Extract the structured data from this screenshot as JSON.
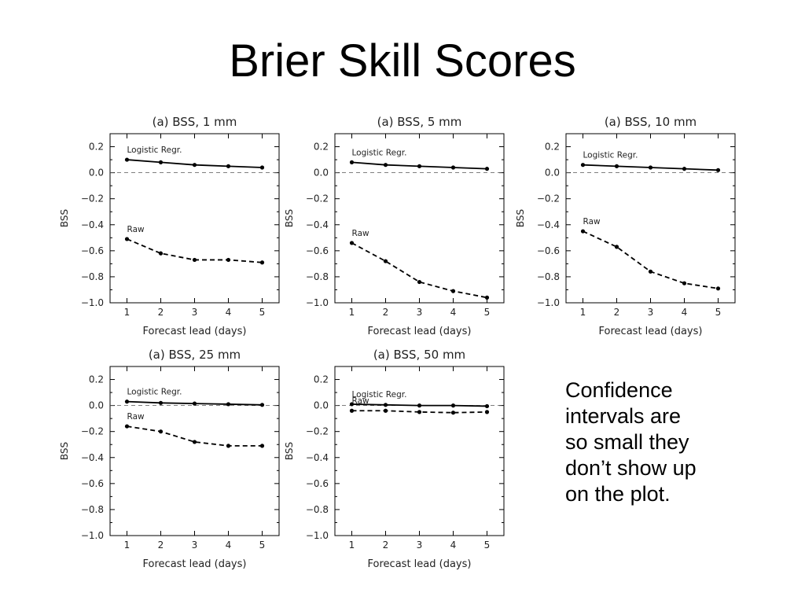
{
  "slide": {
    "title": "Brier Skill Scores",
    "note_lines": [
      "Confidence",
      "intervals are",
      "so small they",
      "don’t show up",
      "on the plot."
    ]
  },
  "chart_data": [
    {
      "type": "line",
      "title": "(a) BSS, 1 mm",
      "xlabel": "Forecast lead (days)",
      "ylabel": "BSS",
      "xlim": [
        0.5,
        5.5
      ],
      "ylim": [
        -1.0,
        0.3
      ],
      "xticks": [
        "1",
        "2",
        "3",
        "4",
        "5"
      ],
      "yticks": [
        "0.2",
        "0.0",
        "−0.2",
        "−0.4",
        "−0.6",
        "−0.8",
        "−1.0"
      ],
      "x": [
        1,
        2,
        3,
        4,
        5
      ],
      "series": [
        {
          "name": "Logistic Regr.",
          "style": "solid",
          "values": [
            0.1,
            0.08,
            0.06,
            0.05,
            0.04
          ]
        },
        {
          "name": "Raw",
          "style": "dashed",
          "values": [
            -0.51,
            -0.62,
            -0.67,
            -0.67,
            -0.69
          ]
        }
      ],
      "reference_line": 0.0
    },
    {
      "type": "line",
      "title": "(a) BSS, 5 mm",
      "xlabel": "Forecast lead (days)",
      "ylabel": "BSS",
      "xlim": [
        0.5,
        5.5
      ],
      "ylim": [
        -1.0,
        0.3
      ],
      "xticks": [
        "1",
        "2",
        "3",
        "4",
        "5"
      ],
      "yticks": [
        "0.2",
        "0.0",
        "−0.2",
        "−0.4",
        "−0.6",
        "−0.8",
        "−1.0"
      ],
      "x": [
        1,
        2,
        3,
        4,
        5
      ],
      "series": [
        {
          "name": "Logistic Regr.",
          "style": "solid",
          "values": [
            0.08,
            0.06,
            0.05,
            0.04,
            0.03
          ]
        },
        {
          "name": "Raw",
          "style": "dashed",
          "values": [
            -0.54,
            -0.68,
            -0.84,
            -0.91,
            -0.96
          ]
        }
      ],
      "reference_line": 0.0
    },
    {
      "type": "line",
      "title": "(a) BSS, 10 mm",
      "xlabel": "Forecast lead (days)",
      "ylabel": "BSS",
      "xlim": [
        0.5,
        5.5
      ],
      "ylim": [
        -1.0,
        0.3
      ],
      "xticks": [
        "1",
        "2",
        "3",
        "4",
        "5"
      ],
      "yticks": [
        "0.2",
        "0.0",
        "−0.2",
        "−0.4",
        "−0.6",
        "−0.8",
        "−1.0"
      ],
      "x": [
        1,
        2,
        3,
        4,
        5
      ],
      "series": [
        {
          "name": "Logistic Regr.",
          "style": "solid",
          "values": [
            0.06,
            0.05,
            0.04,
            0.03,
            0.02
          ]
        },
        {
          "name": "Raw",
          "style": "dashed",
          "values": [
            -0.45,
            -0.57,
            -0.76,
            -0.85,
            -0.89
          ]
        }
      ],
      "reference_line": 0.0
    },
    {
      "type": "line",
      "title": "(a) BSS, 25 mm",
      "xlabel": "Forecast lead (days)",
      "ylabel": "BSS",
      "xlim": [
        0.5,
        5.5
      ],
      "ylim": [
        -1.0,
        0.3
      ],
      "xticks": [
        "1",
        "2",
        "3",
        "4",
        "5"
      ],
      "yticks": [
        "0.2",
        "0.0",
        "−0.2",
        "−0.4",
        "−0.6",
        "−0.8",
        "−1.0"
      ],
      "x": [
        1,
        2,
        3,
        4,
        5
      ],
      "series": [
        {
          "name": "Logistic Regr.",
          "style": "solid",
          "values": [
            0.03,
            0.02,
            0.015,
            0.01,
            0.005
          ]
        },
        {
          "name": "Raw",
          "style": "dashed",
          "values": [
            -0.16,
            -0.2,
            -0.28,
            -0.31,
            -0.31
          ]
        }
      ],
      "reference_line": 0.0
    },
    {
      "type": "line",
      "title": "(a) BSS, 50 mm",
      "xlabel": "Forecast lead (days)",
      "ylabel": "BSS",
      "xlim": [
        0.5,
        5.5
      ],
      "ylim": [
        -1.0,
        0.3
      ],
      "xticks": [
        "1",
        "2",
        "3",
        "4",
        "5"
      ],
      "yticks": [
        "0.2",
        "0.0",
        "−0.2",
        "−0.4",
        "−0.6",
        "−0.8",
        "−1.0"
      ],
      "x": [
        1,
        2,
        3,
        4,
        5
      ],
      "series": [
        {
          "name": "Logistic Regr.",
          "style": "solid",
          "values": [
            0.01,
            0.005,
            0.0,
            0.0,
            -0.005
          ]
        },
        {
          "name": "Raw",
          "style": "dashed",
          "values": [
            -0.04,
            -0.04,
            -0.05,
            -0.055,
            -0.05
          ]
        }
      ],
      "reference_line": 0.0
    }
  ]
}
